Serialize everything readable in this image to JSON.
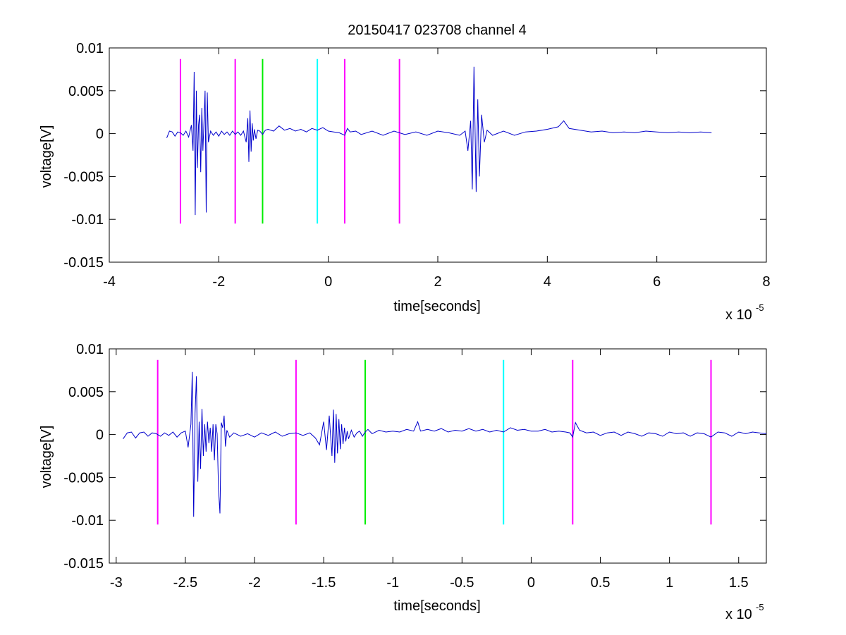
{
  "title": "20150417 023708 channel 4",
  "colors": {
    "magenta": "#ff00ff",
    "green": "#00ee00",
    "cyan": "#00ffff",
    "trace": "#0000cc",
    "axes": "#000000"
  },
  "chart_data": [
    {
      "type": "line",
      "title": "20150417 023708 channel 4",
      "xlabel": "time[seconds]",
      "ylabel": "voltage[V]",
      "x_multiplier": "x 10",
      "x_exponent": "-5",
      "xlim": [
        -4,
        8
      ],
      "ylim": [
        -0.015,
        0.01
      ],
      "xticks": [
        -4,
        -2,
        0,
        2,
        4,
        6,
        8
      ],
      "xtick_labels": [
        "-4",
        "-2",
        "0",
        "2",
        "4",
        "6",
        "8"
      ],
      "yticks": [
        0.01,
        0.005,
        0,
        -0.005,
        -0.01,
        -0.015
      ],
      "ytick_labels": [
        "0.01",
        "0.005",
        "0",
        "-0.005",
        "-0.01",
        "-0.015"
      ],
      "grid": false,
      "markers": [
        {
          "x": -2.7,
          "y_range": [
            -0.0105,
            0.0087
          ],
          "color": "magenta"
        },
        {
          "x": -1.7,
          "y_range": [
            -0.0105,
            0.0087
          ],
          "color": "magenta"
        },
        {
          "x": -1.2,
          "y_range": [
            -0.0105,
            0.0087
          ],
          "color": "green"
        },
        {
          "x": -0.2,
          "y_range": [
            -0.0105,
            0.0087
          ],
          "color": "cyan"
        },
        {
          "x": 0.3,
          "y_range": [
            -0.0105,
            0.0087
          ],
          "color": "magenta"
        },
        {
          "x": 1.3,
          "y_range": [
            -0.0105,
            0.0087
          ],
          "color": "magenta"
        }
      ],
      "series": [
        {
          "color": "trace",
          "x": [
            -2.95,
            -2.9,
            -2.85,
            -2.8,
            -2.75,
            -2.7,
            -2.65,
            -2.6,
            -2.55,
            -2.5,
            -2.47,
            -2.45,
            -2.43,
            -2.41,
            -2.39,
            -2.37,
            -2.35,
            -2.33,
            -2.31,
            -2.29,
            -2.27,
            -2.25,
            -2.23,
            -2.21,
            -2.19,
            -2.15,
            -2.1,
            -2.05,
            -2.0,
            -1.95,
            -1.9,
            -1.85,
            -1.8,
            -1.75,
            -1.7,
            -1.65,
            -1.6,
            -1.55,
            -1.5,
            -1.47,
            -1.45,
            -1.43,
            -1.41,
            -1.39,
            -1.37,
            -1.35,
            -1.32,
            -1.29,
            -1.25,
            -1.2,
            -1.15,
            -1.1,
            -1.0,
            -0.9,
            -0.8,
            -0.7,
            -0.6,
            -0.5,
            -0.4,
            -0.3,
            -0.2,
            -0.1,
            0.0,
            0.1,
            0.2,
            0.3,
            0.35,
            0.4,
            0.5,
            0.6,
            0.8,
            1.0,
            1.2,
            1.4,
            1.6,
            1.8,
            2.0,
            2.2,
            2.4,
            2.5,
            2.55,
            2.6,
            2.63,
            2.66,
            2.7,
            2.73,
            2.76,
            2.8,
            2.85,
            2.9,
            3.0,
            3.2,
            3.4,
            3.6,
            3.8,
            4.0,
            4.2,
            4.3,
            4.4,
            4.6,
            4.8,
            5.0,
            5.2,
            5.4,
            5.6,
            5.8,
            6.0,
            6.2,
            6.4,
            6.6,
            6.8,
            7.0
          ],
          "y": [
            -0.0005,
            0.0003,
            0.0002,
            -0.0003,
            0.0002,
            0.0001,
            -0.0002,
            0.0003,
            -0.0004,
            0.001,
            -0.002,
            0.0072,
            -0.0095,
            0.005,
            -0.004,
            0.001,
            0.0022,
            -0.0045,
            0.003,
            -0.002,
            0.0015,
            0.005,
            -0.0092,
            0.0048,
            -0.001,
            0.0003,
            -0.0002,
            0.0002,
            -0.0003,
            0.0003,
            -0.0001,
            0.0002,
            -0.0002,
            0.0003,
            -0.0001,
            0.0002,
            -0.0002,
            0.0003,
            -0.001,
            0.0018,
            -0.0033,
            0.0027,
            -0.0021,
            0.0012,
            -0.0008,
            0.0005,
            -0.0006,
            0.0004,
            0.0003,
            -0.0001,
            0.0004,
            0.0005,
            0.0003,
            0.0009,
            0.0004,
            0.0006,
            0.0003,
            0.0005,
            0.0002,
            0.0006,
            0.0004,
            0.0007,
            0.0003,
            0.0002,
            0.0001,
            -0.0002,
            0.0006,
            0.0002,
            0.0003,
            -0.0001,
            0.0003,
            -0.0002,
            0.0003,
            -0.0001,
            0.0002,
            -0.0002,
            0.0003,
            0.0001,
            -0.0002,
            0.0003,
            -0.002,
            0.0015,
            -0.0065,
            0.0078,
            -0.0068,
            0.004,
            -0.005,
            0.0022,
            -0.001,
            0.0004,
            -0.0002,
            0.0003,
            -0.0002,
            0.0002,
            0.0003,
            0.0005,
            0.0008,
            0.0015,
            0.0006,
            0.0004,
            0.0002,
            0.0003,
            0.0001,
            0.0002,
            0.0001,
            0.0003,
            0.0002,
            0.0001,
            0.0002,
            0.0001,
            0.0002,
            0.0001
          ]
        }
      ]
    },
    {
      "type": "line",
      "xlabel": "time[seconds]",
      "ylabel": "voltage[V]",
      "x_multiplier": "x 10",
      "x_exponent": "-5",
      "xlim": [
        -3.05,
        1.7
      ],
      "ylim": [
        -0.015,
        0.01
      ],
      "xticks": [
        -3,
        -2.5,
        -2,
        -1.5,
        -1,
        -0.5,
        0,
        0.5,
        1,
        1.5
      ],
      "xtick_labels": [
        "-3",
        "-2.5",
        "-2",
        "-1.5",
        "-1",
        "-0.5",
        "0",
        "0.5",
        "1",
        "1.5"
      ],
      "yticks": [
        0.01,
        0.005,
        0,
        -0.005,
        -0.01,
        -0.015
      ],
      "ytick_labels": [
        "0.01",
        "0.005",
        "0",
        "-0.005",
        "-0.01",
        "-0.015"
      ],
      "grid": false,
      "markers": [
        {
          "x": -2.7,
          "y_range": [
            -0.0105,
            0.0087
          ],
          "color": "magenta"
        },
        {
          "x": -1.7,
          "y_range": [
            -0.0105,
            0.0087
          ],
          "color": "magenta"
        },
        {
          "x": -1.2,
          "y_range": [
            -0.0105,
            0.0087
          ],
          "color": "green"
        },
        {
          "x": -0.2,
          "y_range": [
            -0.0105,
            0.0087
          ],
          "color": "cyan"
        },
        {
          "x": 0.3,
          "y_range": [
            -0.0105,
            0.0087
          ],
          "color": "magenta"
        },
        {
          "x": 1.3,
          "y_range": [
            -0.0105,
            0.0087
          ],
          "color": "magenta"
        }
      ],
      "series": [
        {
          "color": "trace",
          "x": [
            -2.95,
            -2.92,
            -2.89,
            -2.86,
            -2.83,
            -2.8,
            -2.77,
            -2.74,
            -2.71,
            -2.68,
            -2.65,
            -2.62,
            -2.59,
            -2.56,
            -2.53,
            -2.5,
            -2.48,
            -2.46,
            -2.45,
            -2.44,
            -2.43,
            -2.42,
            -2.41,
            -2.4,
            -2.39,
            -2.38,
            -2.37,
            -2.36,
            -2.35,
            -2.34,
            -2.33,
            -2.32,
            -2.31,
            -2.3,
            -2.29,
            -2.28,
            -2.27,
            -2.26,
            -2.25,
            -2.24,
            -2.23,
            -2.22,
            -2.21,
            -2.2,
            -2.18,
            -2.15,
            -2.1,
            -2.05,
            -2.0,
            -1.95,
            -1.9,
            -1.85,
            -1.8,
            -1.75,
            -1.7,
            -1.65,
            -1.6,
            -1.56,
            -1.53,
            -1.5,
            -1.48,
            -1.46,
            -1.44,
            -1.43,
            -1.42,
            -1.41,
            -1.4,
            -1.39,
            -1.38,
            -1.37,
            -1.36,
            -1.35,
            -1.34,
            -1.33,
            -1.32,
            -1.3,
            -1.28,
            -1.26,
            -1.24,
            -1.22,
            -1.2,
            -1.18,
            -1.15,
            -1.1,
            -1.05,
            -1.0,
            -0.95,
            -0.9,
            -0.85,
            -0.82,
            -0.8,
            -0.75,
            -0.7,
            -0.65,
            -0.6,
            -0.55,
            -0.5,
            -0.45,
            -0.4,
            -0.35,
            -0.3,
            -0.25,
            -0.2,
            -0.15,
            -0.1,
            -0.05,
            0.0,
            0.05,
            0.1,
            0.15,
            0.2,
            0.25,
            0.28,
            0.3,
            0.32,
            0.35,
            0.4,
            0.45,
            0.5,
            0.55,
            0.6,
            0.65,
            0.7,
            0.75,
            0.8,
            0.85,
            0.9,
            0.95,
            1.0,
            1.05,
            1.1,
            1.15,
            1.2,
            1.25,
            1.3,
            1.35,
            1.4,
            1.45,
            1.5,
            1.55,
            1.6,
            1.65,
            1.7
          ],
          "y": [
            -0.0005,
            0.0002,
            0.0003,
            -0.0004,
            0.0002,
            0.0003,
            -0.0002,
            0.0002,
            0.0001,
            -0.0002,
            0.0002,
            -0.0001,
            0.0003,
            -0.0003,
            0.0002,
            0.0004,
            -0.0015,
            0.0012,
            0.0073,
            -0.0096,
            0.0025,
            0.0068,
            -0.0055,
            0.0015,
            -0.004,
            0.003,
            -0.0025,
            0.0012,
            -0.002,
            0.0015,
            -0.001,
            0.0008,
            -0.002,
            0.0012,
            -0.003,
            0.0012,
            0.0001,
            -0.0065,
            -0.0092,
            0.0014,
            0.0008,
            0.0022,
            -0.0014,
            0.0005,
            -0.0003,
            0.0002,
            -0.0002,
            0.0001,
            -0.0003,
            0.0002,
            -0.0001,
            0.0003,
            -0.0002,
            0.0001,
            0.0002,
            -0.0001,
            0.0002,
            -0.0004,
            -0.0012,
            0.0015,
            -0.0018,
            0.0022,
            -0.0025,
            0.0029,
            -0.0033,
            0.0024,
            -0.0022,
            0.0018,
            -0.0017,
            0.0012,
            -0.0011,
            0.0008,
            -0.0008,
            0.0004,
            -0.0005,
            0.0005,
            -0.0003,
            0.0002,
            0.0004,
            -0.0002,
            0.0003,
            0.0006,
            0.0001,
            0.0005,
            0.0003,
            0.0004,
            0.0003,
            0.0006,
            0.0004,
            0.0015,
            0.0004,
            0.0006,
            0.0004,
            0.0007,
            0.0003,
            0.0005,
            0.0004,
            0.0007,
            0.0004,
            0.0006,
            0.0003,
            0.0005,
            0.0003,
            0.0008,
            0.0005,
            0.0006,
            0.0004,
            0.0004,
            0.0006,
            0.0003,
            0.0004,
            0.0003,
            0.0002,
            -0.0003,
            0.0014,
            0.0005,
            0.0002,
            0.0003,
            -0.0001,
            0.0002,
            0.0003,
            -0.0001,
            0.0003,
            0.0001,
            -0.0002,
            0.0002,
            0.0001,
            -0.0002,
            0.0003,
            0.0001,
            0.0002,
            -0.0002,
            0.0002,
            0.0001,
            -0.0003,
            0.0003,
            0.0002,
            -0.0002,
            0.0003,
            0.0001,
            0.0003,
            0.0002,
            0.0001
          ]
        }
      ]
    }
  ]
}
